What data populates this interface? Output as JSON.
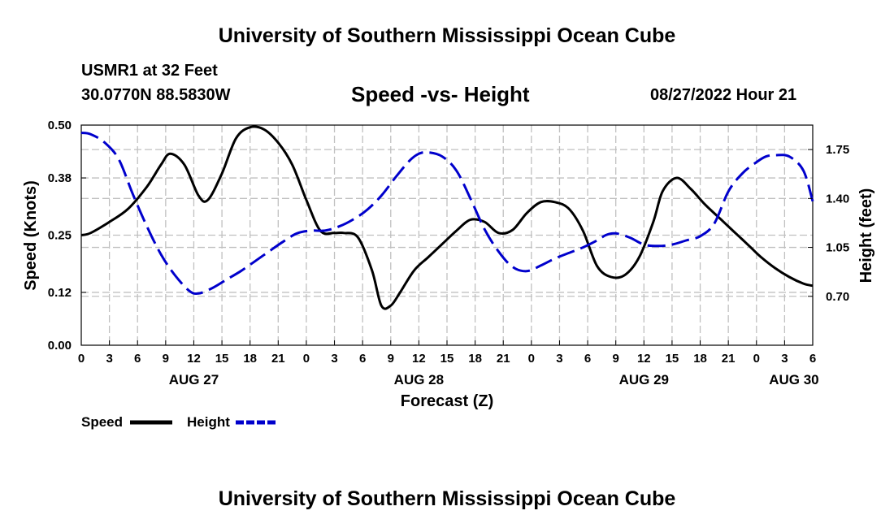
{
  "header": {
    "main_title": "University of Southern Mississippi Ocean Cube",
    "station": "USMR1 at 32 Feet",
    "coords": "30.0770N  88.5830W",
    "plot_title": "Speed -vs- Height",
    "datetime": "08/27/2022 Hour 21",
    "footer_title": "University of Southern Mississippi Ocean Cube"
  },
  "chart_data": {
    "type": "line",
    "title": "Speed -vs- Height",
    "xlabel": "Forecast (Z)",
    "ylabel": "Speed (Knots)",
    "y2label": "Height (feet)",
    "x_range_hours": [
      0,
      78
    ],
    "x_tick_labels": [
      "0",
      "3",
      "6",
      "9",
      "12",
      "15",
      "18",
      "21",
      "0",
      "3",
      "6",
      "9",
      "12",
      "15",
      "18",
      "21",
      "0",
      "3",
      "6",
      "9",
      "12",
      "15",
      "18",
      "21",
      "0",
      "3",
      "6"
    ],
    "date_labels": [
      {
        "hour": 12,
        "label": "AUG 27"
      },
      {
        "hour": 36,
        "label": "AUG 28"
      },
      {
        "hour": 60,
        "label": "AUG 29"
      },
      {
        "hour": 76,
        "label": "AUG 30"
      }
    ],
    "ylim": [
      0,
      0.5
    ],
    "y_ticks": [
      0.0,
      0.12,
      0.25,
      0.38,
      0.5
    ],
    "y_tick_labels": [
      "0.00",
      "0.12",
      "0.25",
      "0.38",
      "0.50"
    ],
    "y2lim": [
      0.35,
      1.925
    ],
    "y2_ticks": [
      0.7,
      1.05,
      1.4,
      1.75
    ],
    "y2_tick_labels": [
      "0.70",
      "1.05",
      "1.40",
      "1.75"
    ],
    "grid": true,
    "legend_placement": "bottom-left",
    "series": [
      {
        "name": "Speed",
        "axis": "left",
        "color": "#000000",
        "dash": "solid",
        "x": [
          0,
          1,
          3,
          5,
          7,
          8.5,
          9.5,
          11,
          12.5,
          13.5,
          15,
          16.5,
          18,
          19.5,
          21,
          22.5,
          24,
          25.5,
          27,
          28,
          29.5,
          31,
          32,
          33,
          34,
          35.5,
          37,
          38.5,
          40,
          41.5,
          43,
          44.5,
          46,
          47.5,
          49,
          50.5,
          52,
          53.5,
          55,
          56.5,
          58,
          59.5,
          61,
          62,
          63.5,
          65,
          66.5,
          68,
          69.5,
          70.5,
          71.5,
          72.5,
          74,
          75.5,
          77,
          78
        ],
        "y": [
          0.25,
          0.255,
          0.28,
          0.31,
          0.36,
          0.41,
          0.435,
          0.41,
          0.34,
          0.33,
          0.39,
          0.47,
          0.495,
          0.49,
          0.46,
          0.41,
          0.33,
          0.26,
          0.255,
          0.255,
          0.245,
          0.17,
          0.09,
          0.09,
          0.12,
          0.17,
          0.2,
          0.23,
          0.26,
          0.285,
          0.28,
          0.255,
          0.262,
          0.3,
          0.325,
          0.325,
          0.31,
          0.26,
          0.18,
          0.155,
          0.16,
          0.2,
          0.28,
          0.35,
          0.38,
          0.355,
          0.32,
          0.29,
          0.26,
          0.24,
          0.22,
          0.2,
          0.175,
          0.155,
          0.14,
          0.135
        ]
      },
      {
        "name": "Height",
        "axis": "right",
        "color": "#0000cc",
        "dash": "dashed",
        "x": [
          0,
          1,
          2.5,
          4,
          5.5,
          7,
          8.5,
          10,
          11.5,
          12.5,
          14,
          15.5,
          17,
          18.5,
          20,
          21.5,
          23,
          24.5,
          26,
          27.5,
          29,
          30.5,
          32,
          33.5,
          35,
          36,
          37,
          38.5,
          40,
          41.5,
          43,
          44.5,
          46,
          47.5,
          49,
          50.5,
          52,
          53.5,
          55,
          56,
          57,
          58.5,
          60,
          61.5,
          63,
          64.5,
          66,
          67.5,
          69,
          70.5,
          72,
          73,
          74,
          75.5,
          77,
          78
        ],
        "y": [
          1.87,
          1.86,
          1.8,
          1.68,
          1.43,
          1.2,
          1.0,
          0.85,
          0.74,
          0.72,
          0.76,
          0.82,
          0.88,
          0.95,
          1.02,
          1.09,
          1.15,
          1.17,
          1.17,
          1.2,
          1.25,
          1.32,
          1.42,
          1.55,
          1.67,
          1.72,
          1.73,
          1.7,
          1.6,
          1.4,
          1.18,
          1.02,
          0.91,
          0.88,
          0.92,
          0.97,
          1.01,
          1.05,
          1.1,
          1.14,
          1.15,
          1.12,
          1.07,
          1.06,
          1.07,
          1.1,
          1.13,
          1.22,
          1.45,
          1.58,
          1.66,
          1.7,
          1.71,
          1.7,
          1.6,
          1.38
        ]
      }
    ]
  }
}
